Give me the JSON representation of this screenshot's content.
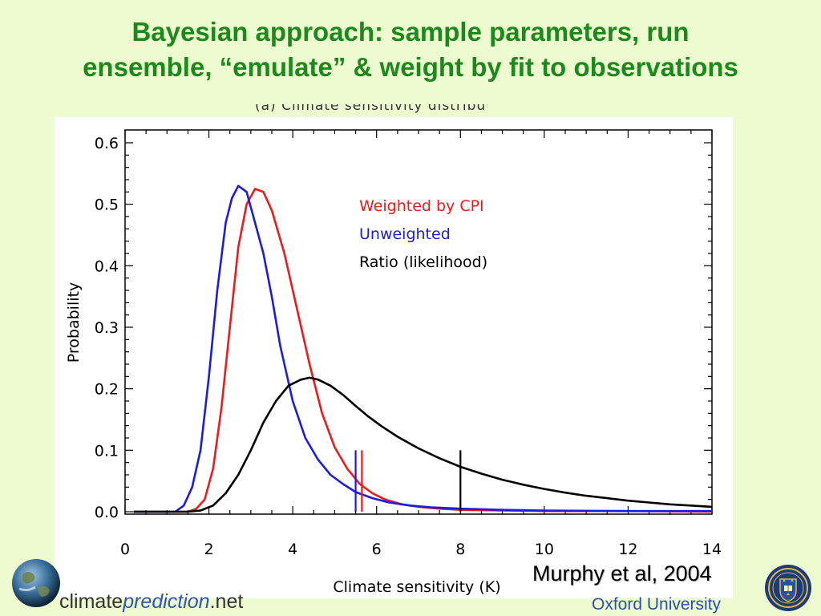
{
  "slide": {
    "title_line1": "Bayesian approach: sample parameters, run",
    "title_line2": "ensemble, “emulate” & weight by fit to observations",
    "cut_off_heading": "(a) Climate sensitivity distribution estimate",
    "citation": "Murphy et al, 2004",
    "organization": "Oxford University",
    "logo": {
      "part1": "climate",
      "part2": "prediction",
      "part3": ".net",
      "icon": "earth-globe-icon"
    },
    "crest_icon": "oxford-university-crest-icon"
  },
  "chart_data": {
    "type": "line",
    "title": "",
    "xlabel": "Climate sensitivity (K)",
    "ylabel": "Probability",
    "xlim": [
      0,
      14
    ],
    "ylim": [
      0,
      0.6
    ],
    "xticks": [
      "0",
      "2",
      "4",
      "6",
      "8",
      "10",
      "12",
      "14"
    ],
    "yticks": [
      "0.0",
      "0.1",
      "0.2",
      "0.3",
      "0.4",
      "0.5",
      "0.6"
    ],
    "grid": false,
    "legend_position": "upper-right-inside",
    "legend": [
      {
        "label": "Weighted by CPI",
        "color": "#e81c1c"
      },
      {
        "label": "Unweighted",
        "color": "#1c1ce0"
      },
      {
        "label": "Ratio (likelihood)",
        "color": "#000000"
      }
    ],
    "series": [
      {
        "name": "Weighted by CPI",
        "color": "#e81c1c",
        "x": [
          0.2,
          1.5,
          1.7,
          1.9,
          2.1,
          2.3,
          2.5,
          2.7,
          2.9,
          3.1,
          3.3,
          3.5,
          3.8,
          4.1,
          4.4,
          4.7,
          5.0,
          5.3,
          5.6,
          5.9,
          6.2,
          6.6,
          7.0,
          7.5,
          8.0,
          9.0,
          10.0,
          12.0,
          14.0
        ],
        "y": [
          0.0,
          0.0,
          0.005,
          0.02,
          0.07,
          0.17,
          0.3,
          0.43,
          0.5,
          0.525,
          0.52,
          0.49,
          0.42,
          0.33,
          0.24,
          0.16,
          0.105,
          0.07,
          0.045,
          0.03,
          0.02,
          0.012,
          0.008,
          0.005,
          0.003,
          0.002,
          0.001,
          0.001,
          0.0
        ]
      },
      {
        "name": "Unweighted",
        "color": "#1c1ce0",
        "x": [
          0.2,
          1.2,
          1.4,
          1.6,
          1.8,
          2.0,
          2.2,
          2.4,
          2.55,
          2.7,
          2.9,
          3.1,
          3.3,
          3.5,
          3.7,
          4.0,
          4.3,
          4.6,
          4.9,
          5.2,
          5.5,
          5.9,
          6.3,
          6.8,
          7.3,
          8.0,
          9.0,
          10.0,
          12.0,
          14.0
        ],
        "y": [
          0.0,
          0.0,
          0.01,
          0.04,
          0.1,
          0.22,
          0.36,
          0.47,
          0.51,
          0.53,
          0.52,
          0.47,
          0.42,
          0.35,
          0.27,
          0.18,
          0.12,
          0.085,
          0.06,
          0.045,
          0.032,
          0.022,
          0.015,
          0.01,
          0.007,
          0.005,
          0.003,
          0.002,
          0.001,
          0.001
        ]
      },
      {
        "name": "Ratio (likelihood)",
        "color": "#000000",
        "x": [
          0.2,
          1.5,
          1.8,
          2.1,
          2.4,
          2.7,
          3.0,
          3.3,
          3.6,
          3.9,
          4.2,
          4.4,
          4.6,
          4.9,
          5.2,
          5.5,
          5.8,
          6.1,
          6.5,
          7.0,
          7.5,
          8.0,
          8.5,
          9.0,
          9.5,
          10.0,
          10.5,
          11.0,
          11.5,
          12.0,
          12.5,
          13.0,
          13.5,
          14.0
        ],
        "y": [
          0.0,
          0.0,
          0.002,
          0.01,
          0.03,
          0.06,
          0.1,
          0.145,
          0.18,
          0.205,
          0.215,
          0.218,
          0.215,
          0.205,
          0.19,
          0.172,
          0.155,
          0.14,
          0.122,
          0.103,
          0.087,
          0.073,
          0.062,
          0.052,
          0.044,
          0.037,
          0.031,
          0.026,
          0.022,
          0.018,
          0.015,
          0.012,
          0.01,
          0.008
        ]
      }
    ],
    "markers": [
      {
        "series": "Unweighted",
        "color": "#1c1ce0",
        "x": 5.5,
        "y_top": 0.1
      },
      {
        "series": "Weighted by CPI",
        "color": "#e81c1c",
        "x": 5.65,
        "y_top": 0.1
      },
      {
        "series": "Ratio (likelihood)",
        "color": "#000000",
        "x": 8.0,
        "y_top": 0.1
      }
    ]
  }
}
